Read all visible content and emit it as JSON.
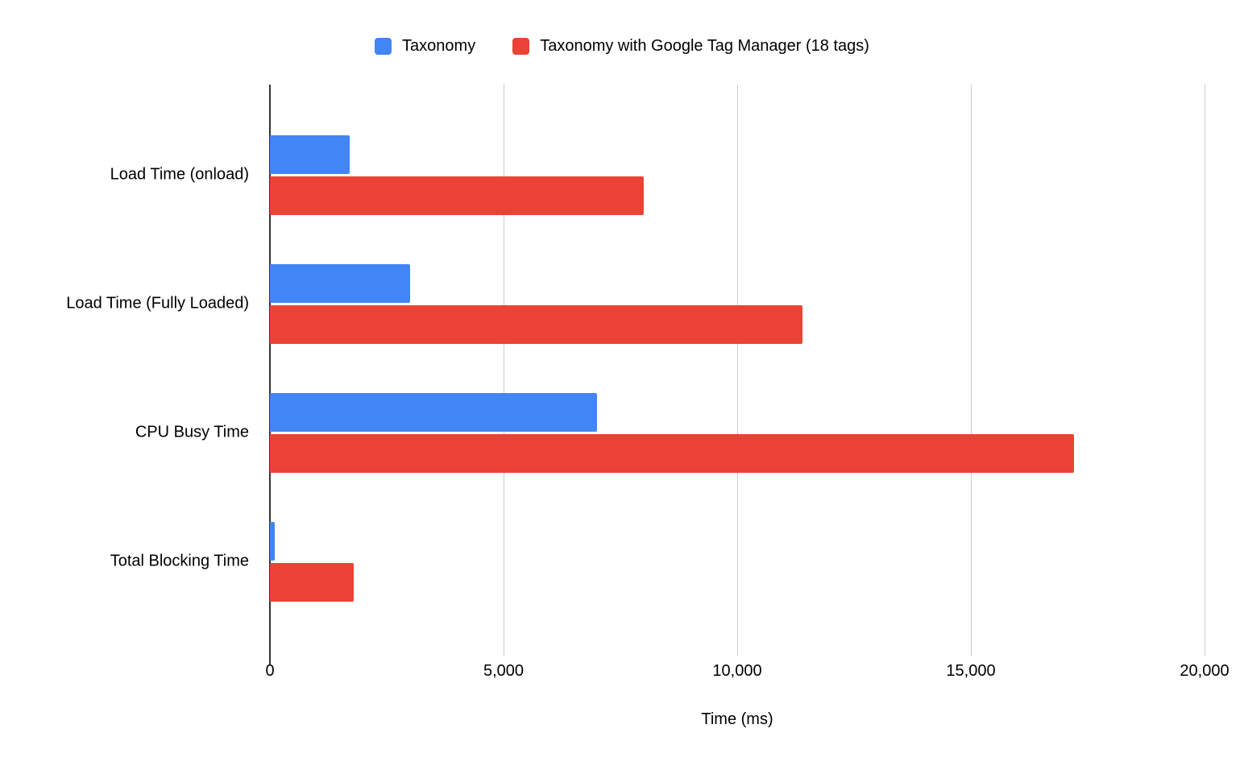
{
  "page": {
    "background": "#ffffff"
  },
  "chart_data": {
    "type": "bar",
    "orientation": "horizontal",
    "title": "",
    "categories": [
      "Load Time (onload)",
      "Load Time (Fully Loaded)",
      "CPU Busy Time",
      "Total Blocking Time"
    ],
    "series": [
      {
        "name": "Taxonomy",
        "color": "#4285F4",
        "values": [
          1700,
          3000,
          7000,
          100
        ]
      },
      {
        "name": "Taxonomy with Google Tag Manager (18 tags)",
        "color": "#EA4335",
        "values": [
          8000,
          11400,
          17200,
          1800
        ]
      }
    ],
    "xlabel": "Time (ms)",
    "ylabel": "",
    "xlim": [
      0,
      20000
    ],
    "x_ticks": [
      {
        "value": 0,
        "label": "0"
      },
      {
        "value": 5000,
        "label": "5,000"
      },
      {
        "value": 10000,
        "label": "10,000"
      },
      {
        "value": 15000,
        "label": "15,000"
      },
      {
        "value": 20000,
        "label": "20,000"
      }
    ],
    "grid": "vertical",
    "legend_position": "top",
    "gridline_color": "#cccccc",
    "axis_line_color": "#333333"
  }
}
